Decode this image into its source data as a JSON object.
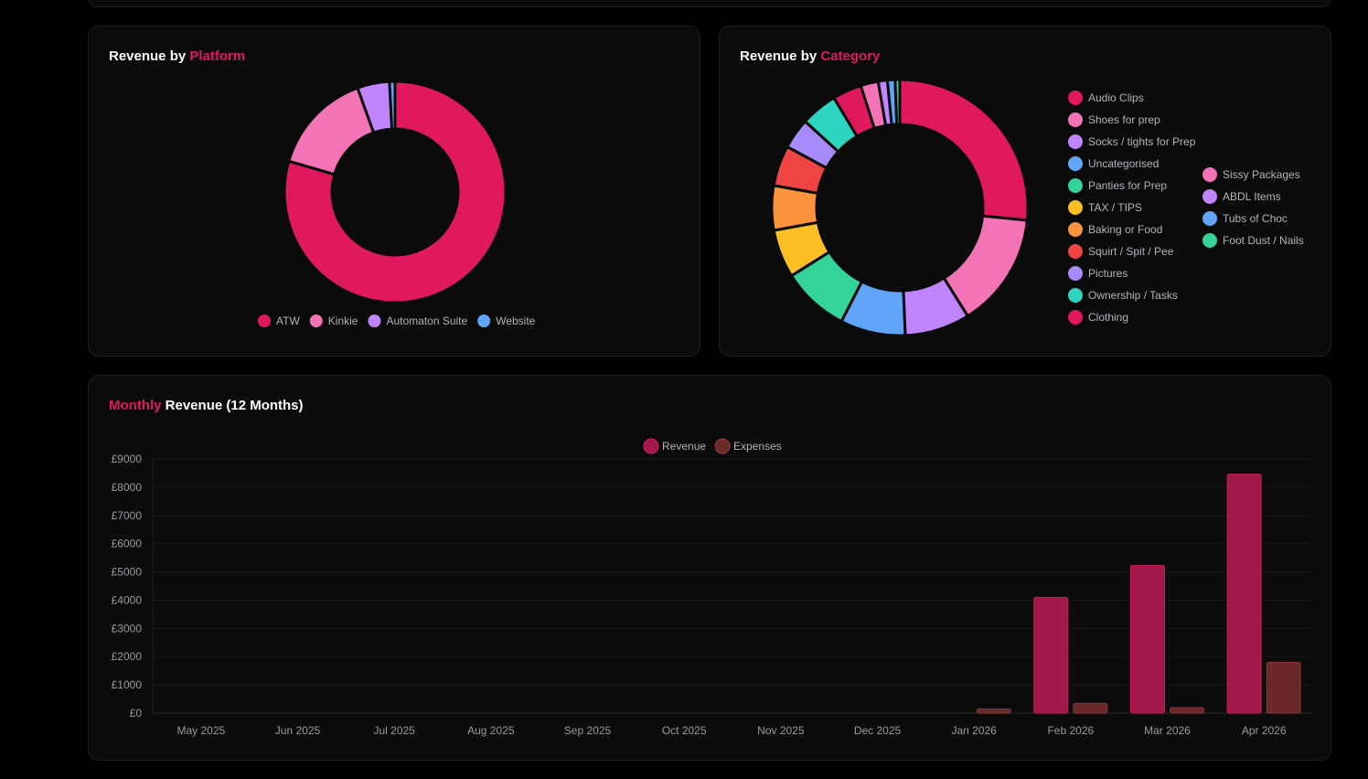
{
  "cards": {
    "platform": {
      "title_white": "Revenue by ",
      "title_accent": "Platform"
    },
    "category": {
      "title_white": "Revenue by ",
      "title_accent": "Category"
    },
    "monthly": {
      "title_accent": "Monthly",
      "title_white": " Revenue (12 Months)"
    }
  },
  "chart_data": [
    {
      "type": "pie",
      "variant": "doughnut",
      "title": "Revenue by Platform",
      "legend_position": "bottom",
      "categories": [
        "ATW",
        "Kinkie",
        "Automaton Suite",
        "Website"
      ],
      "values": [
        79.5,
        15.0,
        4.7,
        0.8
      ],
      "colors": [
        "#e0195f",
        "#f472b6",
        "#c084fc",
        "#60a5fa"
      ]
    },
    {
      "type": "pie",
      "variant": "doughnut",
      "title": "Revenue by Category",
      "legend_position": "right",
      "categories": [
        "Audio Clips",
        "Shoes for prep",
        "Socks / tights for Prep",
        "Uncategorised",
        "Panties for Prep",
        "TAX / TIPS",
        "Baking or Food",
        "Squirt / Spit / Pee",
        "Pictures",
        "Ownership / Tasks",
        "Clothing",
        "Sissy Packages",
        "ABDL Items",
        "Tubs of Choc",
        "Foot Dust / Nails"
      ],
      "values": [
        27.5,
        15.0,
        8.5,
        8.5,
        8.8,
        6.3,
        5.8,
        5.3,
        4.0,
        4.8,
        3.8,
        2.3,
        1.2,
        1.0,
        0.6
      ],
      "colors": [
        "#e0195f",
        "#f472b6",
        "#c084fc",
        "#60a5fa",
        "#34d399",
        "#fbbf24",
        "#fb923c",
        "#ef4444",
        "#a78bfa",
        "#2dd4bf",
        "#e0195f",
        "#f472b6",
        "#c084fc",
        "#60a5fa",
        "#34d399"
      ]
    },
    {
      "type": "bar",
      "title": "Monthly Revenue (12 Months)",
      "legend_position": "top",
      "categories": [
        "May 2025",
        "Jun 2025",
        "Jul 2025",
        "Aug 2025",
        "Sep 2025",
        "Oct 2025",
        "Nov 2025",
        "Dec 2025",
        "Jan 2026",
        "Feb 2026",
        "Mar 2026",
        "Apr 2026"
      ],
      "series": [
        {
          "name": "Revenue",
          "values": [
            0,
            0,
            0,
            0,
            0,
            0,
            0,
            0,
            0,
            4100,
            5230,
            8460
          ],
          "color": "#a3174a"
        },
        {
          "name": "Expenses",
          "values": [
            0,
            0,
            0,
            0,
            0,
            0,
            0,
            0,
            150,
            350,
            200,
            1800
          ],
          "color": "#6b2828"
        }
      ],
      "yticks": [
        "£0",
        "£1000",
        "£2000",
        "£3000",
        "£4000",
        "£5000",
        "£6000",
        "£7000",
        "£8000",
        "£9000"
      ],
      "ylim": [
        0,
        9000
      ],
      "grid": true
    }
  ]
}
